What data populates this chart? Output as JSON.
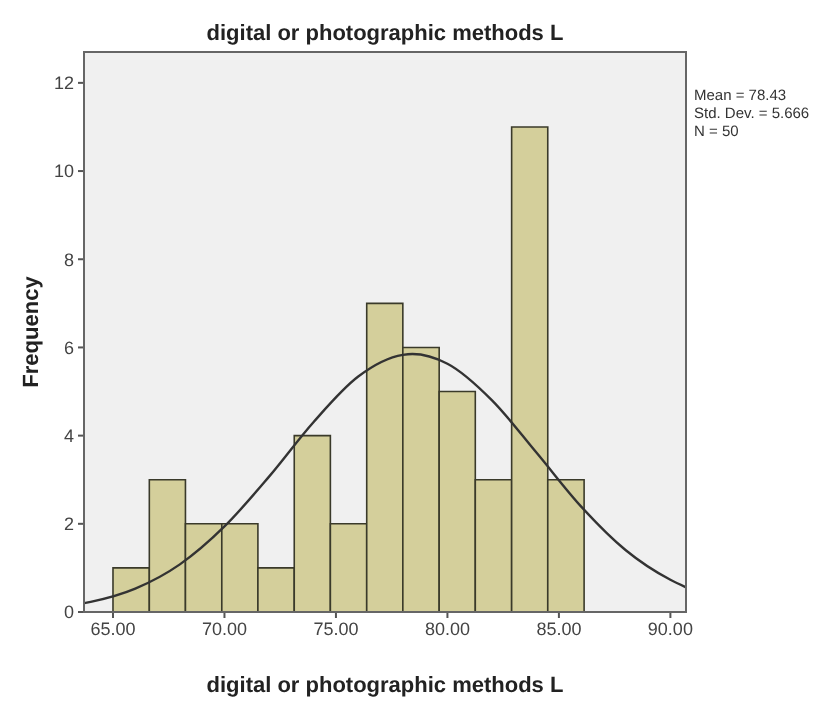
{
  "chart_data": {
    "type": "histogram",
    "title": "digital or photographic methods L",
    "xlabel": "digital or photographic methods L",
    "ylabel": "Frequency",
    "bins": [
      65.0,
      66.63,
      68.25,
      69.88,
      71.5,
      73.13,
      74.75,
      76.38,
      78.0,
      79.63,
      81.25,
      82.88,
      84.5,
      86.13
    ],
    "values": [
      1,
      3,
      2,
      2,
      1,
      4,
      2,
      7,
      6,
      5,
      3,
      11,
      3
    ],
    "color": "#d4cf9b",
    "series": [
      {
        "type": "line",
        "color": "#333333",
        "x": [
          63.7,
          64,
          66,
          68,
          70,
          72,
          74,
          76,
          78,
          78.43,
          80,
          82,
          84,
          86,
          88,
          90,
          90.7
        ],
        "values": [
          0.2,
          0.23,
          0.53,
          1.08,
          1.94,
          3.07,
          4.31,
          5.34,
          5.83,
          5.85,
          5.63,
          4.8,
          3.61,
          2.39,
          1.4,
          0.73,
          0.56
        ]
      }
    ],
    "xlim": [
      63.7,
      90.7
    ],
    "ylim": [
      0,
      12.7
    ],
    "xticks": [
      {
        "value": 65,
        "label": "65.00"
      },
      {
        "value": 70,
        "label": "70.00"
      },
      {
        "value": 75,
        "label": "75.00"
      },
      {
        "value": 80,
        "label": "80.00"
      },
      {
        "value": 85,
        "label": "85.00"
      },
      {
        "value": 90,
        "label": "90.00"
      }
    ],
    "yticks": [
      0,
      2,
      4,
      6,
      8,
      10,
      12
    ],
    "annotations": [
      "Mean = 78.43",
      "Std. Dev. = 5.666",
      "N = 50"
    ]
  }
}
